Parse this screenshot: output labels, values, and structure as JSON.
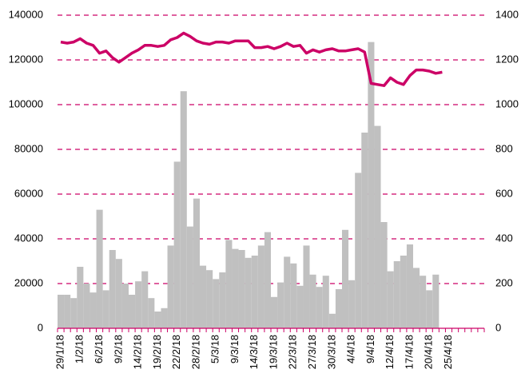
{
  "chart_data": {
    "type": "bar_line",
    "categories": [
      "29/1/18",
      null,
      null,
      "1/2/18",
      null,
      null,
      "6/2/18",
      null,
      null,
      "9/2/18",
      null,
      null,
      "14/2/18",
      null,
      null,
      "19/2/18",
      null,
      null,
      "22/2/18",
      null,
      null,
      "28/2/18",
      null,
      null,
      "5/3/18",
      null,
      null,
      "9/3/18",
      null,
      null,
      "14/3/18",
      null,
      null,
      "19/3/18",
      null,
      null,
      "22/3/18",
      null,
      null,
      "27/3/18",
      null,
      null,
      "30/3/18",
      null,
      null,
      "4/4/18",
      null,
      null,
      "9/4/18",
      null,
      null,
      "12/4/18",
      null,
      null,
      "17/4/18",
      null,
      null,
      "20/4/18",
      null,
      null,
      "25/4/18",
      null,
      null,
      null,
      null,
      null
    ],
    "series": [
      {
        "type": "bar",
        "color": "#c0c0c0",
        "values": [
          15000,
          15000,
          13500,
          27500,
          20000,
          16000,
          53000,
          17000,
          35000,
          31000,
          20000,
          15000,
          21000,
          25500,
          13500,
          7500,
          9000,
          37000,
          74500,
          106000,
          45500,
          58000,
          28000,
          26000,
          22000,
          25000,
          39500,
          35500,
          35000,
          31500,
          32500,
          37000,
          43000,
          14000,
          20500,
          32000,
          29000,
          19000,
          37000,
          24000,
          18500,
          23500,
          6500,
          17500,
          44000,
          21500,
          69500,
          87500,
          128000,
          90500,
          47500,
          25500,
          30000,
          32500,
          37500,
          27000,
          23500,
          17000,
          24000,
          null,
          null,
          null,
          null,
          null,
          null,
          null
        ]
      },
      {
        "type": "line",
        "axis": "y2",
        "color": "#cc0066",
        "values": [
          1280,
          1275,
          1280,
          1295,
          1275,
          1265,
          1230,
          1240,
          1210,
          1190,
          1210,
          1230,
          1245,
          1265,
          1265,
          1260,
          1265,
          1290,
          1300,
          1320,
          1305,
          1285,
          1275,
          1270,
          1280,
          1280,
          1275,
          1285,
          1285,
          1285,
          1255,
          1255,
          1260,
          1250,
          1260,
          1275,
          1260,
          1265,
          1230,
          1245,
          1235,
          1245,
          1250,
          1240,
          1240,
          1245,
          1250,
          1235,
          1095,
          1090,
          1085,
          1120,
          1100,
          1090,
          1130,
          1155,
          1155,
          1150,
          1140,
          1145,
          null,
          null,
          null,
          null,
          null,
          null
        ]
      }
    ],
    "ylim": [
      0,
      140000
    ],
    "yticks": [
      0,
      20000,
      40000,
      60000,
      80000,
      100000,
      120000,
      140000
    ],
    "y2lim": [
      0,
      1400
    ],
    "y2ticks": [
      0,
      200,
      400,
      600,
      800,
      1000,
      1200,
      1400
    ],
    "grid": true,
    "grid_color": "#cc0066"
  }
}
